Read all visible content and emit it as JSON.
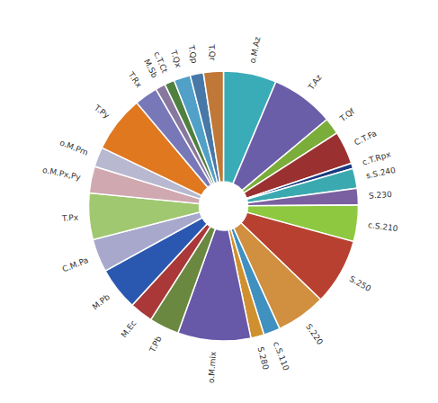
{
  "chart_data": {
    "type": "pie",
    "categories": [
      "o.M.Az",
      "T.Az",
      "T.Qf",
      "C.T.Fa",
      "c.T.Rpx",
      "s.S.240",
      "S.230",
      "c.S.210",
      "S.250",
      "S.220",
      "c.S.110",
      "S.280",
      "o.M.mix",
      "T.Pb",
      "M.Ec",
      "M.Pb",
      "C.M.Pa",
      "T.Px",
      "o.M.Px,Py",
      "o.M.Pm",
      "T.Py",
      "T.Rx",
      "M.Sb",
      "c.T.Ct",
      "T.Qx",
      "T.Qp",
      "T.Qr"
    ],
    "values": [
      8.0,
      9.5,
      2.5,
      5.0,
      0.8,
      3.0,
      2.5,
      5.5,
      10.0,
      7.5,
      2.5,
      2.0,
      11.0,
      4.5,
      3.5,
      6.5,
      5.0,
      7.0,
      4.0,
      3.0,
      8.5,
      3.5,
      1.5,
      1.5,
      2.5,
      2.0,
      3.0
    ],
    "colors": [
      "#3AACB8",
      "#6B5EA8",
      "#7AAD3A",
      "#9B3030",
      "#1A3A80",
      "#3AAAB0",
      "#7A60A0",
      "#8EC840",
      "#B84030",
      "#D09040",
      "#4090C0",
      "#D09030",
      "#6858A8",
      "#6A8840",
      "#AA3838",
      "#2A58B0",
      "#A8A8CC",
      "#A0C870",
      "#D0A8B0",
      "#B8B8D0",
      "#E07820",
      "#7878B8",
      "#8878A0",
      "#508040",
      "#50A0C8",
      "#4878A8",
      "#C07838"
    ]
  }
}
